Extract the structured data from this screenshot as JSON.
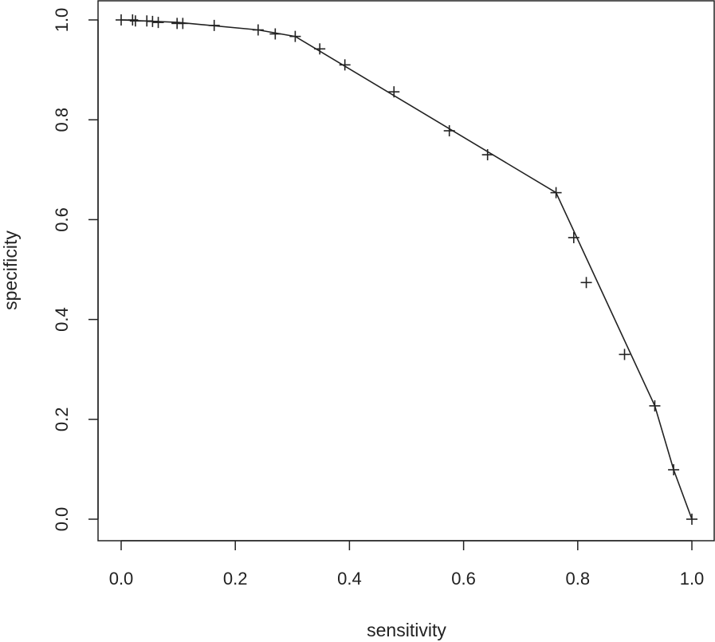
{
  "chart_data": {
    "type": "scatter",
    "title": "",
    "xlabel": "sensitivity",
    "ylabel": "specificity",
    "xlim": [
      0.0,
      1.0
    ],
    "ylim": [
      0.0,
      1.0
    ],
    "xticks": [
      "0.0",
      "0.2",
      "0.4",
      "0.6",
      "0.8",
      "1.0"
    ],
    "yticks": [
      "0.0",
      "0.2",
      "0.4",
      "0.6",
      "0.8",
      "1.0"
    ],
    "grid": false,
    "legend": "none",
    "marker": "plus",
    "color": "#222222",
    "points": [
      {
        "x": 0.0,
        "y": 1.0
      },
      {
        "x": 0.02,
        "y": 1.0
      },
      {
        "x": 0.025,
        "y": 0.998
      },
      {
        "x": 0.045,
        "y": 0.998
      },
      {
        "x": 0.055,
        "y": 0.997
      },
      {
        "x": 0.065,
        "y": 0.995
      },
      {
        "x": 0.098,
        "y": 0.993
      },
      {
        "x": 0.108,
        "y": 0.993
      },
      {
        "x": 0.163,
        "y": 0.989
      },
      {
        "x": 0.24,
        "y": 0.98
      },
      {
        "x": 0.27,
        "y": 0.972
      },
      {
        "x": 0.305,
        "y": 0.967
      },
      {
        "x": 0.348,
        "y": 0.942
      },
      {
        "x": 0.392,
        "y": 0.91
      },
      {
        "x": 0.478,
        "y": 0.856
      },
      {
        "x": 0.575,
        "y": 0.778
      },
      {
        "x": 0.642,
        "y": 0.73
      },
      {
        "x": 0.762,
        "y": 0.654
      },
      {
        "x": 0.793,
        "y": 0.564
      },
      {
        "x": 0.815,
        "y": 0.474
      },
      {
        "x": 0.882,
        "y": 0.33
      },
      {
        "x": 0.935,
        "y": 0.227
      },
      {
        "x": 0.968,
        "y": 0.099
      },
      {
        "x": 1.0,
        "y": 0.0
      }
    ],
    "line": [
      {
        "x": 0.0,
        "y": 1.0
      },
      {
        "x": 0.1,
        "y": 0.995
      },
      {
        "x": 0.24,
        "y": 0.98
      },
      {
        "x": 0.305,
        "y": 0.967
      },
      {
        "x": 0.762,
        "y": 0.654
      },
      {
        "x": 0.935,
        "y": 0.227
      },
      {
        "x": 0.968,
        "y": 0.099
      },
      {
        "x": 1.0,
        "y": 0.0
      }
    ]
  }
}
